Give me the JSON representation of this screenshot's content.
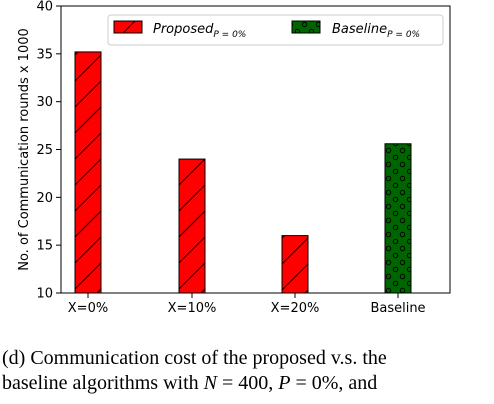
{
  "chart_data": {
    "type": "bar",
    "categories": [
      "X=0%",
      "X=10%",
      "X=20%",
      "Baseline"
    ],
    "series": [
      {
        "name": "Proposed",
        "name_subscript": "P = 0%",
        "values": [
          35.2,
          24.0,
          16.0,
          null
        ],
        "color": "#ff0000",
        "hatch": "diagonal"
      },
      {
        "name": "Baseline",
        "name_subscript": "P = 0%",
        "values": [
          null,
          null,
          null,
          25.6
        ],
        "color": "#006400",
        "hatch": "circles"
      }
    ],
    "title": "",
    "xlabel": "",
    "ylabel": "No. of Communication rounds x 1000",
    "ylim": [
      10,
      40
    ],
    "yticks": [
      10,
      15,
      20,
      25,
      30,
      35,
      40
    ],
    "grid": false,
    "legend": "top"
  },
  "caption": {
    "line1_prefix": "(d) Communication cost of the proposed v.s. the",
    "line2_prefix": "baseline algorithms with ",
    "n_symbol": "N",
    "n_value": " = 400, ",
    "p_symbol": "P",
    "p_value": " = 0%, and"
  }
}
